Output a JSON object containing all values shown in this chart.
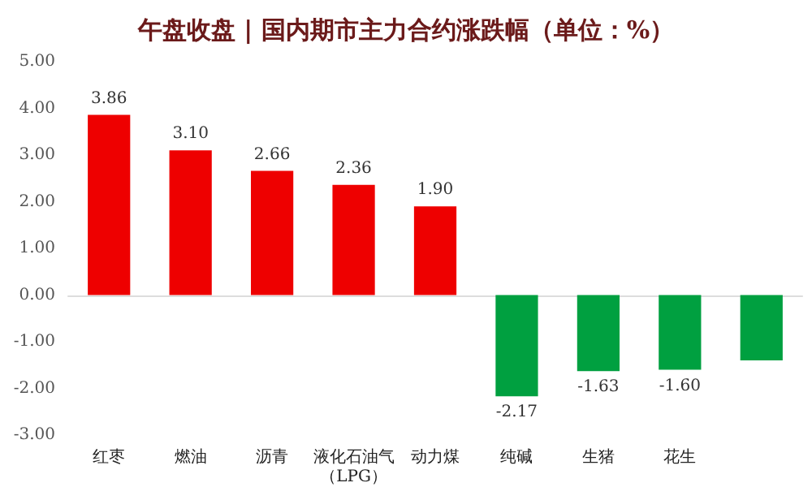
{
  "chart_data": {
    "type": "bar",
    "title": "午盘收盘 | 国内期市主力合约涨跌幅（单位：%）",
    "categories": [
      "红枣",
      "燃油",
      "沥青",
      "液化石油气（LPG）",
      "动力煤",
      "纯碱",
      "生猪",
      "花生",
      null
    ],
    "values": [
      3.86,
      3.1,
      2.66,
      2.36,
      1.9,
      -2.17,
      -1.63,
      -1.6,
      -1.4
    ],
    "colors": [
      "#ee0000",
      "#ee0000",
      "#ee0000",
      "#ee0000",
      "#ee0000",
      "#00a040",
      "#00a040",
      "#00a040",
      "#00a040"
    ],
    "value_labels": [
      "3.86",
      "3.10",
      "2.66",
      "2.36",
      "1.90",
      "-2.17",
      "-1.63",
      "-1.60",
      null
    ],
    "ylim": [
      -3,
      5
    ],
    "yticks": [
      {
        "value": -3,
        "label": "-3.00"
      },
      {
        "value": -2,
        "label": "-2.00"
      },
      {
        "value": -1,
        "label": "-1.00"
      },
      {
        "value": 0,
        "label": "0.00"
      },
      {
        "value": 1,
        "label": "1.00"
      },
      {
        "value": 2,
        "label": "2.00"
      },
      {
        "value": 3,
        "label": "3.00"
      },
      {
        "value": 4,
        "label": "4.00"
      },
      {
        "value": 5,
        "label": "5.00"
      }
    ],
    "tick_labels": [
      "x",
      "y"
    ]
  }
}
